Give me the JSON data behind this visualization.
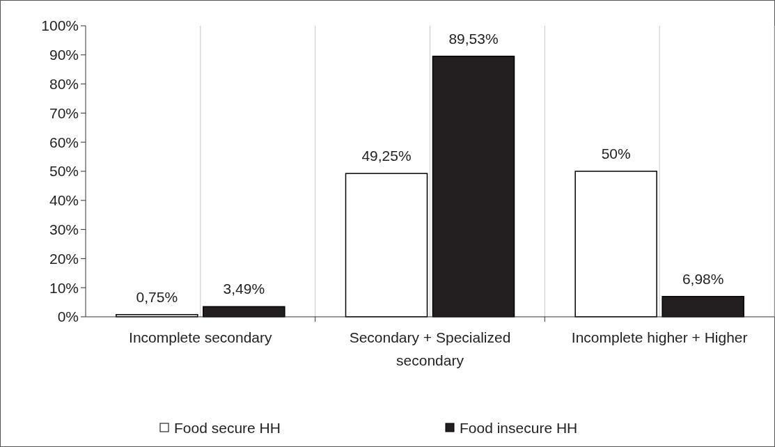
{
  "chart_data": {
    "type": "bar",
    "categories": [
      "Incomplete secondary",
      "Secondary + Specialized secondary",
      "Incomplete higher + Higher"
    ],
    "series": [
      {
        "name": "Food secure HH",
        "color": "#ffffff",
        "values": [
          0.75,
          49.25,
          50
        ],
        "value_labels": [
          "0,75%",
          "49,25%",
          "50%"
        ]
      },
      {
        "name": "Food insecure HH",
        "color": "#231f20",
        "values": [
          3.49,
          89.53,
          6.98
        ],
        "value_labels": [
          "3,49%",
          "89,53%",
          "6,98%"
        ]
      }
    ],
    "ylim": [
      0,
      100
    ],
    "yticks": [
      {
        "value": 0,
        "label": "0%"
      },
      {
        "value": 10,
        "label": "10%"
      },
      {
        "value": 20,
        "label": "20%"
      },
      {
        "value": 30,
        "label": "30%"
      },
      {
        "value": 40,
        "label": "40%"
      },
      {
        "value": 50,
        "label": "50%"
      },
      {
        "value": 60,
        "label": "60%"
      },
      {
        "value": 70,
        "label": "70%"
      },
      {
        "value": 80,
        "label": "80%"
      },
      {
        "value": 90,
        "label": "90%"
      },
      {
        "value": 100,
        "label": "100%"
      }
    ],
    "grid": "x",
    "legend": "bottom"
  }
}
